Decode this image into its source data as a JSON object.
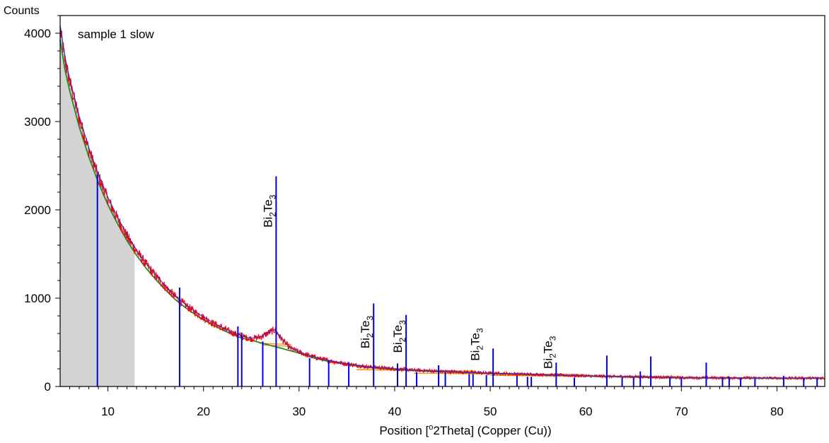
{
  "chart_data": {
    "type": "line",
    "ylabel": "Counts",
    "xlabel_prefix": "Position [",
    "xlabel_sup": "o",
    "xlabel_suffix": "2Theta] (Copper (Cu))",
    "sample_label": "sample 1 slow",
    "xlim": [
      5,
      85
    ],
    "ylim": [
      0,
      4200
    ],
    "x_ticks": [
      10,
      20,
      30,
      40,
      50,
      60,
      70,
      80
    ],
    "y_ticks": [
      0,
      1000,
      2000,
      3000,
      4000
    ],
    "shaded_region": [
      5,
      12.8
    ],
    "colors": {
      "measured": "#ff0000",
      "calculated": "#3333cc",
      "background": "#228b22",
      "reference": "#0000dd",
      "profile": "#ff8c00",
      "shade": "#d3d3d3"
    },
    "series": [
      {
        "name": "",
        "x": [
          5,
          5.5,
          6,
          7,
          8,
          9,
          10,
          11,
          12,
          13,
          14,
          15,
          16,
          17,
          18,
          19,
          20,
          21,
          22,
          23,
          24,
          25,
          26,
          27,
          27.5,
          28,
          29,
          30,
          31,
          32,
          33,
          34,
          35,
          36,
          37,
          38,
          40,
          42,
          45,
          48,
          50,
          55,
          60,
          65,
          70,
          75,
          80,
          85
        ],
        "y": [
          4050,
          3700,
          3450,
          3030,
          2680,
          2380,
          2120,
          1900,
          1700,
          1530,
          1380,
          1250,
          1130,
          1020,
          930,
          850,
          780,
          715,
          660,
          610,
          565,
          540,
          560,
          620,
          640,
          560,
          440,
          390,
          350,
          320,
          295,
          275,
          255,
          240,
          225,
          215,
          200,
          185,
          170,
          160,
          150,
          135,
          120,
          110,
          100,
          98,
          95,
          95
        ]
      }
    ],
    "peaks": [
      {
        "x": 8.9,
        "y": 2400
      },
      {
        "x": 17.5,
        "y": 1120
      },
      {
        "x": 23.6,
        "y": 680
      },
      {
        "x": 24.0,
        "y": 610
      },
      {
        "x": 26.2,
        "y": 510
      },
      {
        "x": 27.6,
        "y": 2380
      },
      {
        "x": 31.1,
        "y": 320
      },
      {
        "x": 33.1,
        "y": 300
      },
      {
        "x": 35.2,
        "y": 270
      },
      {
        "x": 37.8,
        "y": 940
      },
      {
        "x": 40.3,
        "y": 260
      },
      {
        "x": 41.2,
        "y": 810
      },
      {
        "x": 42.3,
        "y": 160
      },
      {
        "x": 44.6,
        "y": 240
      },
      {
        "x": 45.3,
        "y": 160
      },
      {
        "x": 47.8,
        "y": 140
      },
      {
        "x": 48.2,
        "y": 140
      },
      {
        "x": 49.6,
        "y": 130
      },
      {
        "x": 50.3,
        "y": 430
      },
      {
        "x": 52.8,
        "y": 120
      },
      {
        "x": 53.9,
        "y": 110
      },
      {
        "x": 54.3,
        "y": 110
      },
      {
        "x": 56.9,
        "y": 270
      },
      {
        "x": 58.8,
        "y": 100
      },
      {
        "x": 62.2,
        "y": 350
      },
      {
        "x": 63.8,
        "y": 100
      },
      {
        "x": 65.0,
        "y": 100
      },
      {
        "x": 65.7,
        "y": 170
      },
      {
        "x": 66.8,
        "y": 340
      },
      {
        "x": 68.8,
        "y": 100
      },
      {
        "x": 70.0,
        "y": 100
      },
      {
        "x": 72.6,
        "y": 270
      },
      {
        "x": 74.3,
        "y": 100
      },
      {
        "x": 75.0,
        "y": 110
      },
      {
        "x": 76.2,
        "y": 90
      },
      {
        "x": 77.7,
        "y": 90
      },
      {
        "x": 80.7,
        "y": 120
      },
      {
        "x": 82.8,
        "y": 90
      },
      {
        "x": 84.2,
        "y": 90
      }
    ],
    "annotations": [
      {
        "x": 27.6,
        "y": 1800,
        "base": "Bi",
        "sub1": "2",
        "mid": "Te",
        "sub2": "3"
      },
      {
        "x": 37.8,
        "y": 430,
        "base": "Bi",
        "sub1": "2",
        "mid": "Te",
        "sub2": "3"
      },
      {
        "x": 41.2,
        "y": 380,
        "base": "Bi",
        "sub1": "2",
        "mid": "Te",
        "sub2": "3"
      },
      {
        "x": 49.3,
        "y": 290,
        "base": "Bi",
        "sub1": "2",
        "mid": "Te",
        "sub2": "3"
      },
      {
        "x": 56.9,
        "y": 200,
        "base": "Bi",
        "sub1": "2",
        "mid": "Te",
        "sub2": "3"
      }
    ]
  }
}
